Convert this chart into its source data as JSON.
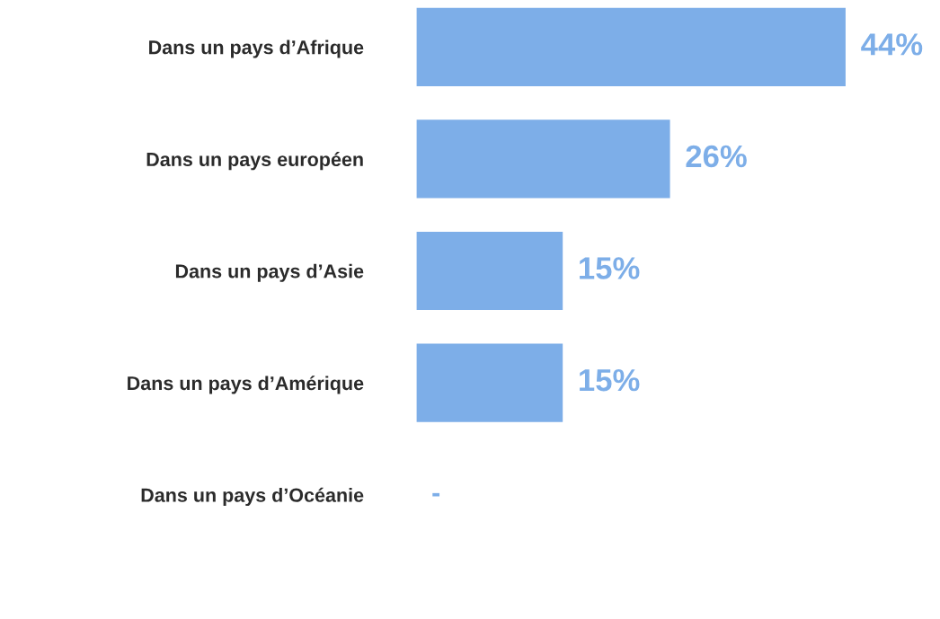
{
  "chart_data": {
    "type": "bar",
    "orientation": "horizontal",
    "categories": [
      "Dans un pays d’Afrique",
      "Dans un pays européen",
      "Dans un pays d’Asie",
      "Dans un pays d’Amérique",
      "Dans un pays d’Océanie"
    ],
    "values": [
      44,
      26,
      15,
      15,
      null
    ],
    "value_labels": [
      "44%",
      "26%",
      "15%",
      "15%",
      "-"
    ],
    "color": "#7daee8"
  }
}
